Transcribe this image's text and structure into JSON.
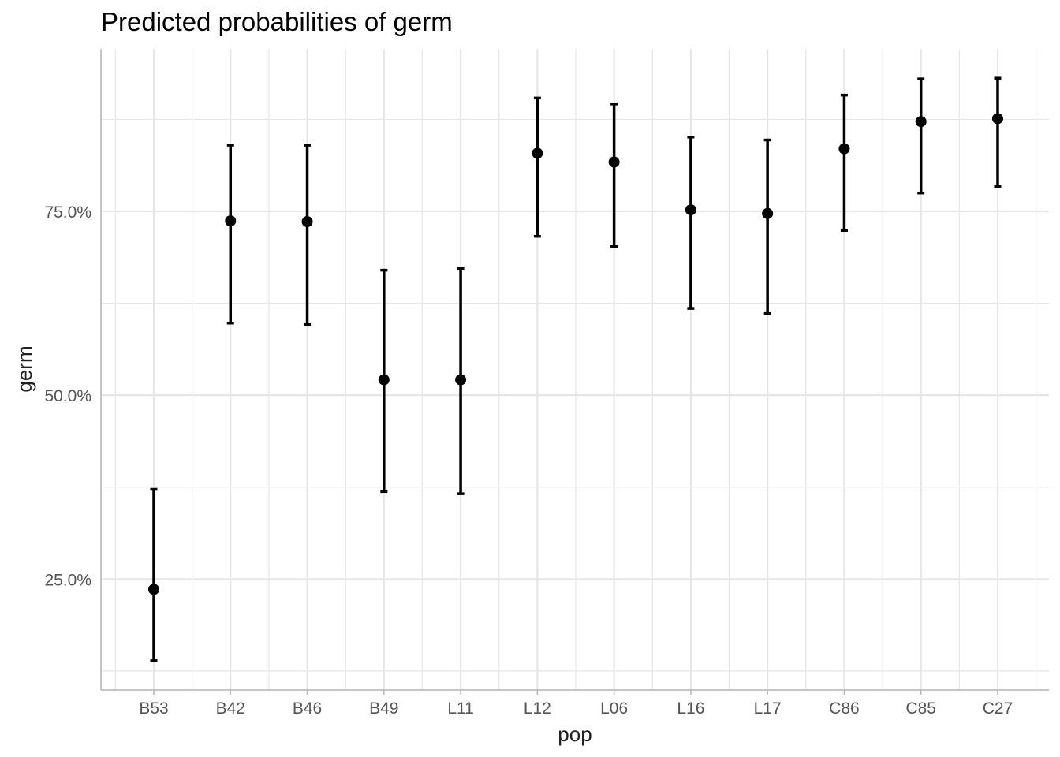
{
  "chart_data": {
    "type": "scatter",
    "title": "Predicted probabilities of germ",
    "xlabel": "pop",
    "ylabel": "germ",
    "categories": [
      "B53",
      "B42",
      "B46",
      "B49",
      "L11",
      "L12",
      "L06",
      "L16",
      "L17",
      "C86",
      "C85",
      "C27"
    ],
    "series": [
      {
        "values": [
          23.6,
          73.7,
          73.6,
          52.1,
          52.1,
          82.9,
          81.7,
          75.2,
          74.7,
          83.5,
          87.2,
          87.6
        ],
        "ci_low": [
          13.9,
          59.8,
          59.6,
          36.9,
          36.6,
          71.6,
          70.2,
          61.8,
          61.1,
          72.4,
          77.5,
          78.4
        ],
        "ci_high": [
          37.2,
          84.0,
          84.0,
          67.0,
          67.2,
          90.4,
          89.6,
          85.1,
          84.7,
          90.8,
          93.0,
          93.1
        ]
      }
    ],
    "y_ticks": [
      25,
      50,
      75
    ],
    "y_tick_labels": [
      "25.0%",
      "50.0%",
      "75.0%"
    ],
    "ylim": [
      10,
      97.5
    ],
    "grid": true,
    "legend": "none",
    "colors": {
      "marker": "#000000",
      "grid": "#e6e6e6",
      "axis": "#b3b3b3"
    }
  }
}
